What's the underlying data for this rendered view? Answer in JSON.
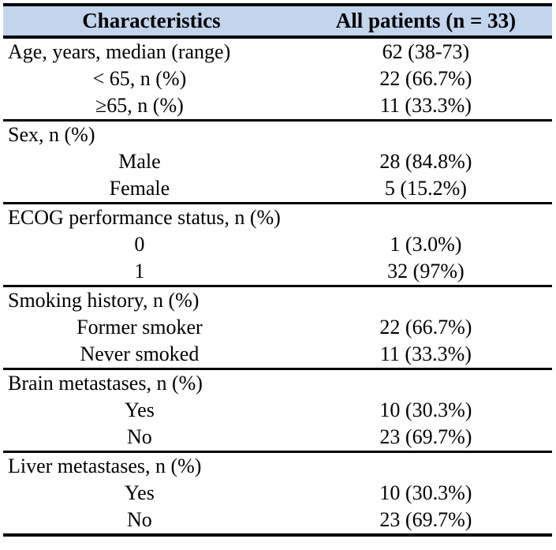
{
  "colors": {
    "header_bg": "#c3d4ed",
    "border": "#000000",
    "text": "#000000"
  },
  "table": {
    "header": {
      "characteristics_label": "Characteristics",
      "patients_label": "All patients (n = 33)"
    },
    "rows": [
      {
        "label": "Age, years, median (range)",
        "value": "62 (38-73)"
      },
      {
        "label": "< 65, n (%)",
        "value": "22 (66.7%)"
      },
      {
        "label": "≥65, n (%)",
        "value": "11 (33.3%)"
      },
      {
        "label": "Sex, n (%)",
        "value": ""
      },
      {
        "label": "Male",
        "value": "28 (84.8%)"
      },
      {
        "label": "Female",
        "value": "5 (15.2%)"
      },
      {
        "label": "ECOG performance status, n (%)",
        "value": ""
      },
      {
        "label": "0",
        "value": "1 (3.0%)"
      },
      {
        "label": "1",
        "value": "32 (97%)"
      },
      {
        "label": "Smoking history, n (%)",
        "value": ""
      },
      {
        "label": "Former smoker",
        "value": "22 (66.7%)"
      },
      {
        "label": "Never smoked",
        "value": "11 (33.3%)"
      },
      {
        "label": "Brain metastases, n (%)",
        "value": ""
      },
      {
        "label": "Yes",
        "value": "10 (30.3%)"
      },
      {
        "label": "No",
        "value": "23 (69.7%)"
      },
      {
        "label": "Liver metastases, n (%)",
        "value": ""
      },
      {
        "label": "Yes",
        "value": "10 (30.3%)"
      },
      {
        "label": "No",
        "value": "23 (69.7%)"
      }
    ]
  }
}
